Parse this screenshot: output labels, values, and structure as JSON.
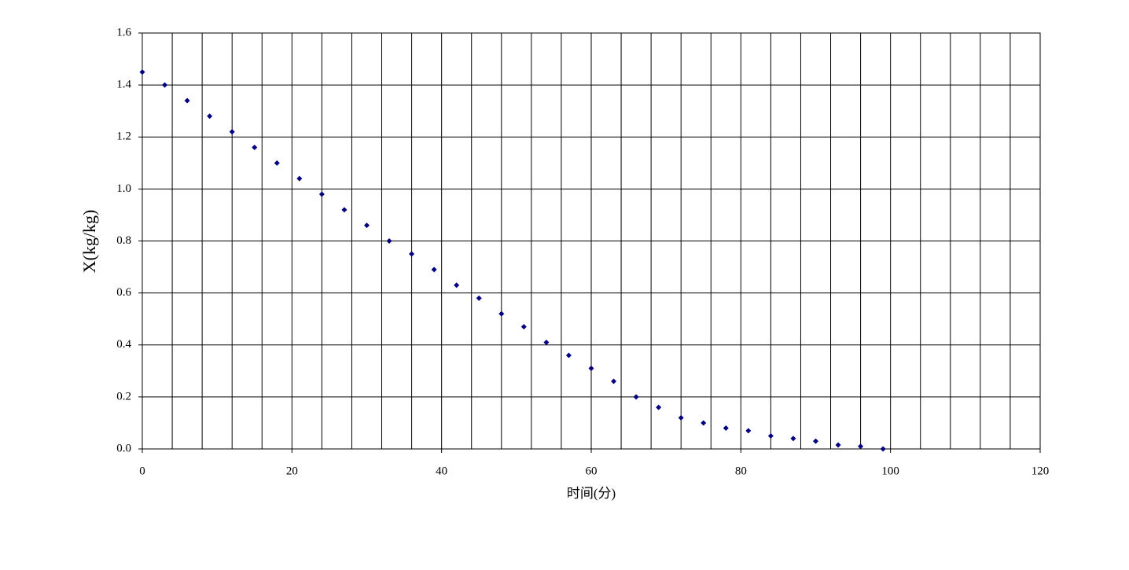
{
  "chart_data": {
    "type": "scatter",
    "x_label": "时间(分)",
    "y_label": "X(kg/kg)",
    "xlim": [
      0,
      120
    ],
    "xticks": [
      0,
      20,
      40,
      60,
      80,
      100,
      120
    ],
    "xgrid": [
      0,
      4,
      8,
      12,
      16,
      20,
      24,
      28,
      32,
      36,
      40,
      44,
      48,
      52,
      56,
      60,
      64,
      68,
      72,
      76,
      80,
      84,
      88,
      92,
      96,
      100,
      104,
      108,
      112,
      116,
      120
    ],
    "ylim": [
      0,
      1.6
    ],
    "yticks": [
      {
        "value": 0,
        "label": "0.0"
      },
      0.2,
      0.4,
      0.6,
      0.8,
      {
        "value": 1,
        "label": "1.0"
      },
      1.2,
      1.4,
      1.6
    ],
    "grid": true,
    "series": [
      {
        "name": "X",
        "color": "#000080",
        "x": [
          0,
          3,
          6,
          9,
          12,
          15,
          18,
          21,
          24,
          27,
          30,
          33,
          36,
          39,
          42,
          45,
          48,
          51,
          54,
          57,
          60,
          63,
          66,
          69,
          72,
          75,
          78,
          81,
          84,
          87,
          90,
          93,
          96,
          99
        ],
        "values": [
          1.45,
          1.4,
          1.34,
          1.28,
          1.22,
          1.16,
          1.1,
          1.04,
          0.98,
          0.92,
          0.86,
          0.8,
          0.75,
          0.69,
          0.63,
          0.58,
          0.52,
          0.47,
          0.41,
          0.36,
          0.31,
          0.26,
          0.2,
          0.16,
          0.12,
          0.1,
          0.08,
          0.07,
          0.05,
          0.04,
          0.03,
          0.015,
          0.01,
          0
        ]
      }
    ]
  }
}
